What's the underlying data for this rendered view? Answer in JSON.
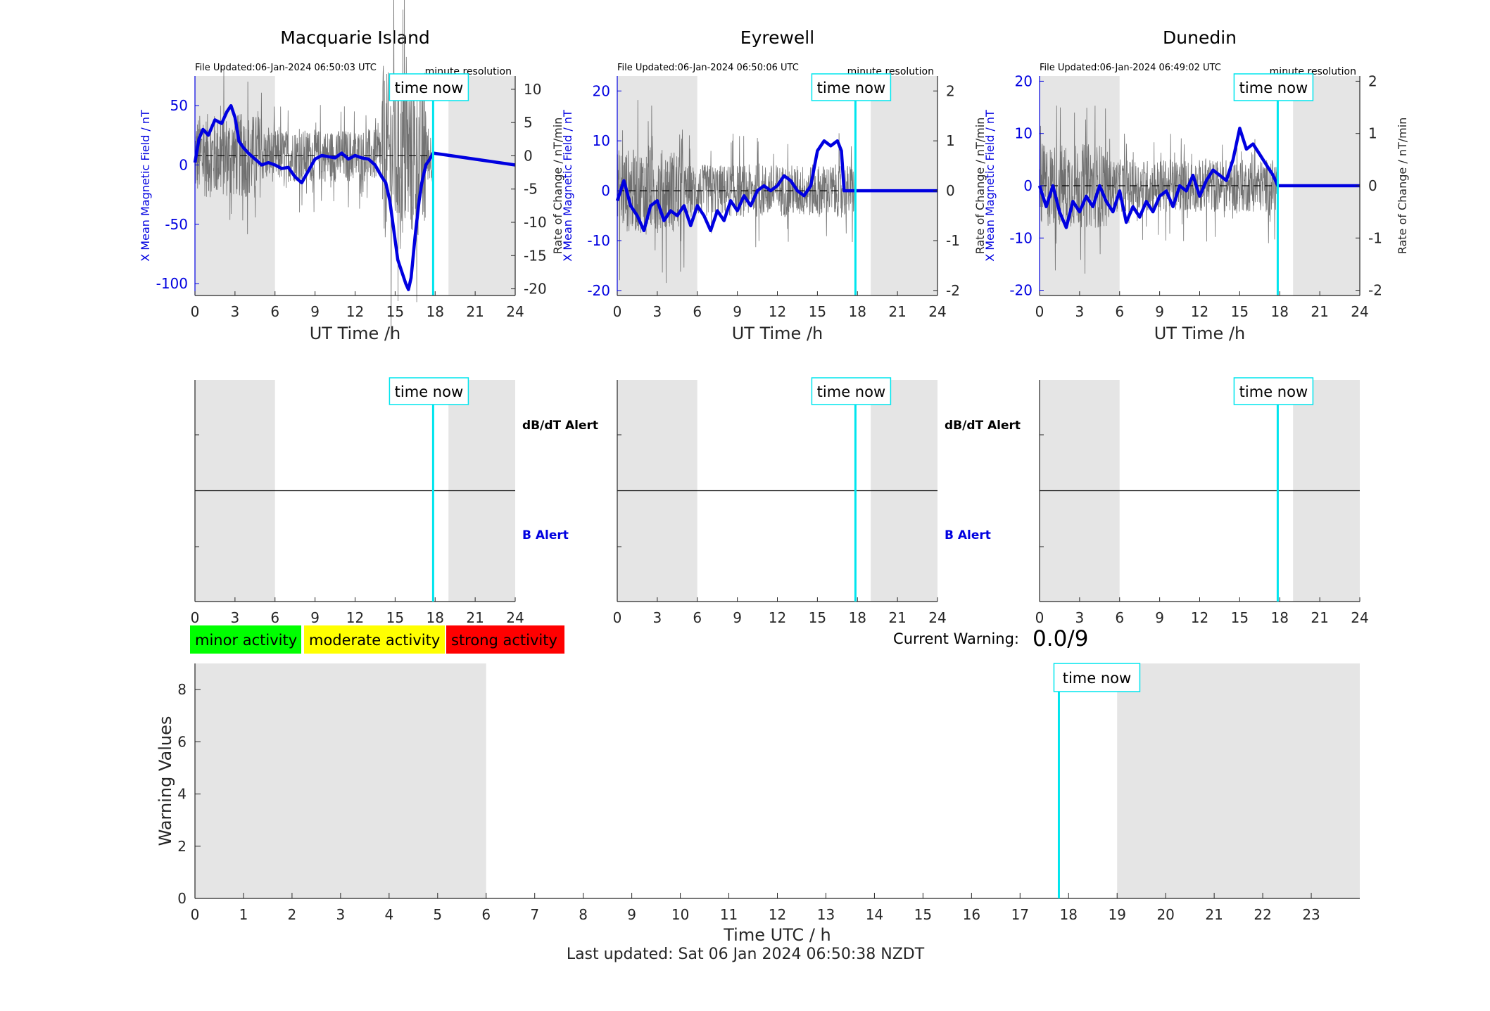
{
  "stations": [
    {
      "name": "Macquarie Island",
      "file_updated": "File Updated:06-Jan-2024 06:50:03 UTC",
      "resolution": "minute resolution",
      "left_ylabel": "X Mean Magnetic Field / nT",
      "right_ylabel": "Rate of Change / nT/min",
      "xlabel": "UT Time /h",
      "left_ticks": [
        "50",
        "0",
        "-50",
        "-100"
      ],
      "right_ticks": [
        "10",
        "5",
        "0",
        "-5",
        "-10",
        "-15",
        "-20"
      ],
      "time_now_label": "time now",
      "dbdt_alert": "dB/dT Alert",
      "b_alert": "B Alert"
    },
    {
      "name": "Eyrewell",
      "file_updated": "File Updated:06-Jan-2024 06:50:06 UTC",
      "resolution": "minute resolution",
      "left_ylabel": "X Mean Magnetic Field / nT",
      "right_ylabel": "Rate of Change / nT/min",
      "xlabel": "UT Time /h",
      "left_ticks": [
        "20",
        "10",
        "0",
        "-10",
        "-20"
      ],
      "right_ticks": [
        "2",
        "1",
        "0",
        "-1",
        "-2"
      ],
      "time_now_label": "time now",
      "dbdt_alert": "dB/dT Alert",
      "b_alert": "B Alert"
    },
    {
      "name": "Dunedin",
      "file_updated": "File Updated:06-Jan-2024 06:49:02 UTC",
      "resolution": "minute resolution",
      "left_ylabel": "X Mean Magnetic Field / nT",
      "right_ylabel": "Rate of Change / nT/min",
      "xlabel": "UT Time /h",
      "left_ticks": [
        "20",
        "10",
        "0",
        "-10",
        "-20"
      ],
      "right_ticks": [
        "2",
        "1",
        "0",
        "-1",
        "-2"
      ],
      "time_now_label": "time now"
    }
  ],
  "hour_ticks": [
    "0",
    "3",
    "6",
    "9",
    "12",
    "15",
    "18",
    "21",
    "24"
  ],
  "legend": [
    {
      "label": "minor activity",
      "color": "#00ff00"
    },
    {
      "label": "moderate activity",
      "color": "#ffff00"
    },
    {
      "label": "strong activity",
      "color": "#ff0000"
    }
  ],
  "current_warning": {
    "label": "Current Warning:",
    "value": "0.0/9"
  },
  "warning_chart": {
    "ylabel": "Warning Values",
    "xlabel": "Time UTC / h",
    "y_ticks": [
      "0",
      "2",
      "4",
      "6",
      "8"
    ],
    "x_ticks": [
      "0",
      "1",
      "2",
      "3",
      "4",
      "5",
      "6",
      "7",
      "8",
      "9",
      "10",
      "11",
      "12",
      "13",
      "14",
      "15",
      "16",
      "17",
      "18",
      "19",
      "20",
      "21",
      "22",
      "23"
    ],
    "time_now_label": "time now"
  },
  "last_updated": "Last updated: Sat 06 Jan 2024 06:50:38 NZDT",
  "colors": {
    "field_line": "#0000e0",
    "rate_line": "#5a5a5a",
    "time_now": "#00e5ee",
    "shade": "#e5e5e5"
  },
  "chart_data": [
    {
      "type": "line",
      "title": "Macquarie Island",
      "xlabel": "UT Time /h",
      "ylabel": "X Mean Magnetic Field / nT",
      "y2label": "Rate of Change / nT/min",
      "xlim": [
        0,
        24
      ],
      "ylim": [
        -110,
        75
      ],
      "y2lim": [
        -21,
        12
      ],
      "night_shading": [
        [
          0,
          6
        ],
        [
          19,
          24
        ]
      ],
      "time_now": 17.85,
      "series": [
        {
          "axis": "left",
          "x": [
            0,
            0.3,
            0.6,
            1.0,
            1.5,
            2.0,
            2.4,
            2.7,
            3.0,
            3.3,
            3.6,
            4.0,
            4.5,
            5.0,
            5.5,
            6.0,
            6.5,
            7.0,
            7.5,
            8.0,
            8.5,
            9.0,
            9.5,
            10.0,
            10.5,
            11.0,
            11.5,
            12.0,
            12.5,
            13.0,
            13.5,
            14.0,
            14.3,
            14.6,
            14.9,
            15.2,
            15.5,
            15.8,
            16.0,
            16.2,
            16.5,
            16.8,
            17.0,
            17.3,
            17.6,
            17.85,
            24
          ],
          "values": [
            2,
            22,
            30,
            25,
            38,
            35,
            45,
            50,
            40,
            20,
            15,
            10,
            5,
            0,
            2,
            0,
            -3,
            -2,
            -10,
            -15,
            -5,
            5,
            8,
            7,
            6,
            10,
            5,
            8,
            6,
            5,
            0,
            -10,
            -15,
            -30,
            -55,
            -80,
            -90,
            -100,
            -105,
            -95,
            -60,
            -30,
            -15,
            0,
            5,
            10,
            0
          ]
        },
        {
          "axis": "right",
          "note": "noisy rate-of-change trace around 0 nT/min"
        }
      ]
    },
    {
      "type": "line",
      "title": "Eyrewell",
      "xlabel": "UT Time /h",
      "ylabel": "X Mean Magnetic Field / nT",
      "y2label": "Rate of Change / nT/min",
      "xlim": [
        0,
        24
      ],
      "ylim": [
        -21,
        23
      ],
      "y2lim": [
        -2.1,
        2.3
      ],
      "night_shading": [
        [
          0,
          6
        ],
        [
          19,
          24
        ]
      ],
      "time_now": 17.85,
      "series": [
        {
          "axis": "left",
          "x": [
            0,
            0.5,
            1.0,
            1.5,
            2.0,
            2.5,
            3.0,
            3.5,
            4.0,
            4.5,
            5.0,
            5.5,
            6.0,
            6.5,
            7.0,
            7.5,
            8.0,
            8.5,
            9.0,
            9.5,
            10.0,
            10.5,
            11.0,
            11.5,
            12.0,
            12.5,
            13.0,
            13.5,
            14.0,
            14.5,
            15.0,
            15.5,
            16.0,
            16.5,
            16.8,
            17.0,
            24
          ],
          "values": [
            -2,
            2,
            -3,
            -5,
            -8,
            -3,
            -2,
            -6,
            -4,
            -5,
            -3,
            -7,
            -3,
            -5,
            -8,
            -4,
            -6,
            -2,
            -4,
            -1,
            -3,
            0,
            1,
            0,
            1,
            3,
            2,
            0,
            -1,
            1,
            8,
            10,
            9,
            10,
            8,
            0,
            0
          ]
        },
        {
          "axis": "right",
          "note": "noisy rate-of-change trace around 0 nT/min"
        }
      ]
    },
    {
      "type": "line",
      "title": "Dunedin",
      "xlabel": "UT Time /h",
      "ylabel": "X Mean Magnetic Field / nT",
      "y2label": "Rate of Change / nT/min",
      "xlim": [
        0,
        24
      ],
      "ylim": [
        -21,
        21
      ],
      "y2lim": [
        -2.1,
        2.1
      ],
      "night_shading": [
        [
          0,
          6
        ],
        [
          19,
          24
        ]
      ],
      "time_now": 17.85,
      "series": [
        {
          "axis": "left",
          "x": [
            0,
            0.5,
            1.0,
            1.5,
            2.0,
            2.5,
            3.0,
            3.5,
            4.0,
            4.5,
            5.0,
            5.5,
            6.0,
            6.5,
            7.0,
            7.5,
            8.0,
            8.5,
            9.0,
            9.5,
            10.0,
            10.5,
            11.0,
            11.5,
            12.0,
            12.5,
            13.0,
            13.5,
            14.0,
            14.5,
            15.0,
            15.5,
            16.0,
            16.5,
            17.0,
            17.5,
            17.85,
            24
          ],
          "values": [
            0,
            -4,
            0,
            -5,
            -8,
            -3,
            -5,
            -2,
            -4,
            0,
            -3,
            -5,
            -1,
            -7,
            -4,
            -6,
            -3,
            -5,
            -2,
            -1,
            -4,
            0,
            -1,
            2,
            -2,
            1,
            3,
            2,
            1,
            5,
            11,
            7,
            8,
            6,
            4,
            2,
            0,
            0
          ]
        },
        {
          "axis": "right",
          "note": "noisy rate-of-change trace around 0 nT/min"
        }
      ]
    },
    {
      "type": "line",
      "title": "",
      "xlabel": "Time UTC / h",
      "ylabel": "Warning Values",
      "xlim": [
        0,
        24
      ],
      "ylim": [
        0,
        9
      ],
      "night_shading": [
        [
          0,
          6
        ],
        [
          19,
          24
        ]
      ],
      "time_now": 17.8,
      "series": []
    }
  ]
}
